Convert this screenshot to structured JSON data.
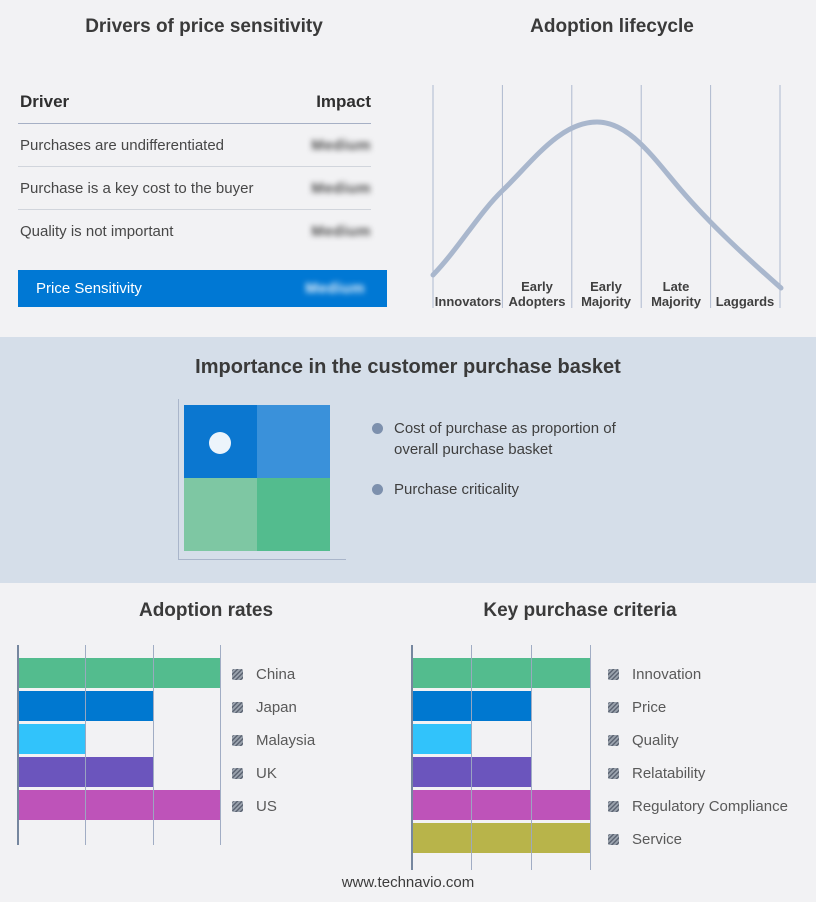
{
  "colors": {
    "accent": "#0078d4",
    "band_background": "#d5dee9",
    "page_background": "#f2f2f4"
  },
  "drivers_table": {
    "title": "Drivers of price sensitivity",
    "columns": {
      "driver": "Driver",
      "impact": "Impact"
    },
    "rows": [
      {
        "driver": "Purchases are undifferentiated",
        "impact": "Medium"
      },
      {
        "driver": "Purchase is a key cost to the buyer",
        "impact": "Medium"
      },
      {
        "driver": "Quality is not important",
        "impact": "Medium"
      }
    ],
    "highlight_row": {
      "driver": "Price Sensitivity",
      "impact": "Medium"
    },
    "impact_values_obscured": true
  },
  "lifecycle": {
    "title": "Adoption lifecycle",
    "stages": [
      "Innovators",
      "Early\nAdopters",
      "Early\nMajority",
      "Late\nMajority",
      "Laggards"
    ],
    "curve_color": "#a9b7cd"
  },
  "basket": {
    "title": "Importance in the customer purchase basket",
    "bullets": [
      "Cost of purchase as proportion of overall purchase basket",
      "Purchase criticality"
    ],
    "quadrant_colors": {
      "top_left": "#0b77d0",
      "top_right": "#3a91da",
      "bottom_left": "#7ec7a3",
      "bottom_right": "#53bc8e"
    },
    "marker_color": "#ecf4fb"
  },
  "chart_data": [
    {
      "type": "line",
      "title": "Adoption lifecycle",
      "x_categories": [
        "Innovators",
        "Early Adopters",
        "Early Majority",
        "Late Majority",
        "Laggards"
      ],
      "curve_points_normalized": [
        {
          "x": 0.0,
          "y": 0.07
        },
        {
          "x": 0.2,
          "y": 0.52
        },
        {
          "x": 0.4,
          "y": 0.93
        },
        {
          "x": 0.47,
          "y": 1.0
        },
        {
          "x": 0.6,
          "y": 0.88
        },
        {
          "x": 0.8,
          "y": 0.44
        },
        {
          "x": 1.0,
          "y": 0.03
        }
      ],
      "description": "Bell-shaped adoption curve peaking in the Early Majority stage",
      "grid": "vertical stage separators, no numeric axes",
      "legend": "none"
    },
    {
      "type": "bar",
      "orientation": "horizontal",
      "title": "Adoption rates",
      "categories": [
        "China",
        "Japan",
        "Malaysia",
        "UK",
        "US"
      ],
      "values": [
        3,
        2,
        1,
        2,
        3
      ],
      "xlim": [
        0,
        3
      ],
      "value_scale": "relative thirds of axis; no numeric tick labels shown",
      "colors": [
        "#53bc8e",
        "#0078d0",
        "#31c3fb",
        "#6b55bd",
        "#be53b9"
      ],
      "legend_position": "right",
      "grid": "vertical lines at each third"
    },
    {
      "type": "bar",
      "orientation": "horizontal",
      "title": "Key purchase criteria",
      "categories": [
        "Innovation",
        "Price",
        "Quality",
        "Relatability",
        "Regulatory Compliance",
        "Service"
      ],
      "values": [
        3,
        2,
        1,
        2,
        3,
        3
      ],
      "xlim": [
        0,
        3
      ],
      "value_scale": "relative thirds of axis; no numeric tick labels shown",
      "colors": [
        "#53bc8e",
        "#0078d0",
        "#31c3fb",
        "#6b55bd",
        "#be53b9",
        "#b8b44a"
      ],
      "legend_position": "right",
      "grid": "vertical lines at each third"
    }
  ],
  "footer": {
    "url": "www.technavio.com"
  }
}
